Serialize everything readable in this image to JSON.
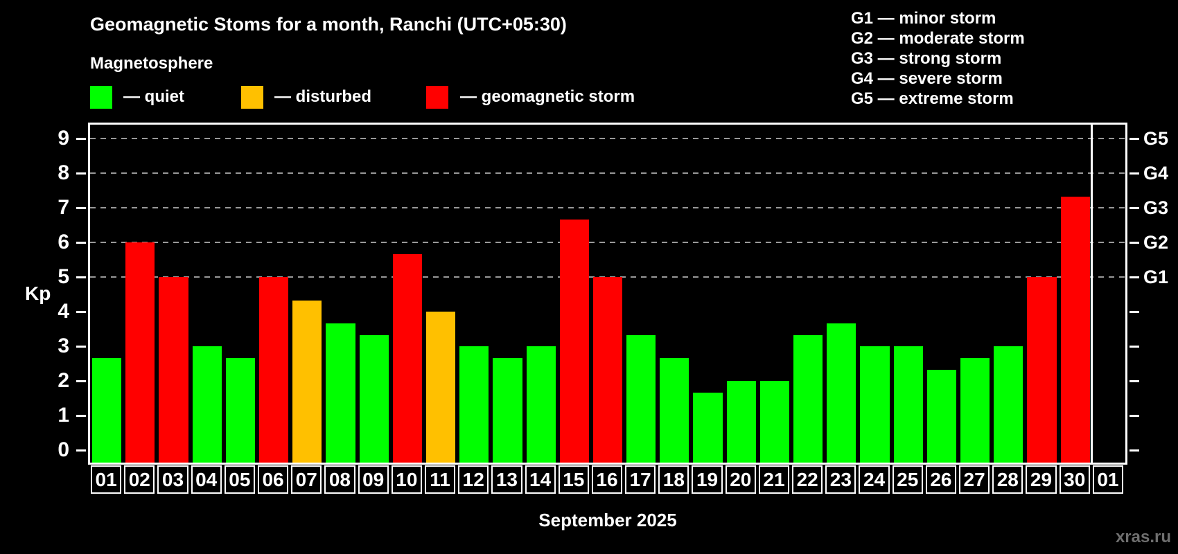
{
  "title": "Geomagnetic Stoms for a month, Ranchi (UTC+05:30)",
  "subtitle": "Magnetosphere",
  "legend": {
    "quiet_label": "— quiet",
    "disturbed_label": "— disturbed",
    "storm_label": "— geomagnetic storm"
  },
  "g_legend": [
    "G1 — minor storm",
    "G2 — moderate storm",
    "G3 — strong storm",
    "G4 — severe storm",
    "G5 — extreme storm"
  ],
  "axis": {
    "kp_label": "Kp",
    "y_ticks": [
      0,
      1,
      2,
      3,
      4,
      5,
      6,
      7,
      8,
      9
    ],
    "g_levels": [
      {
        "label": "G1",
        "value": 5
      },
      {
        "label": "G2",
        "value": 6
      },
      {
        "label": "G3",
        "value": 7
      },
      {
        "label": "G4",
        "value": 8
      },
      {
        "label": "G5",
        "value": 9
      }
    ]
  },
  "month_label": "September 2025",
  "watermark": "xras.ru",
  "colors": {
    "background": "#000000",
    "quiet": "#00ff00",
    "disturbed": "#ffc000",
    "storm": "#ff0000",
    "grid": "#999999",
    "axis": "#ffffff",
    "watermark": "#6f6f6f"
  },
  "chart_data": {
    "type": "bar",
    "title": "Geomagnetic Stoms for a month, Ranchi (UTC+05:30)",
    "xlabel": "September 2025",
    "ylabel": "Kp",
    "ylim": [
      0,
      9
    ],
    "grid": "dashed horizontal at Kp 5-9",
    "legend_position": "top",
    "gridlines_at": [
      5,
      6,
      7,
      8,
      9
    ],
    "right_axis_labels": {
      "G1": 5,
      "G2": 6,
      "G3": 7,
      "G4": 8,
      "G5": 9
    },
    "days": [
      {
        "day": "01",
        "kp": 2.67,
        "status": "quiet"
      },
      {
        "day": "02",
        "kp": 6.0,
        "status": "storm"
      },
      {
        "day": "03",
        "kp": 5.0,
        "status": "storm"
      },
      {
        "day": "04",
        "kp": 3.0,
        "status": "quiet"
      },
      {
        "day": "05",
        "kp": 2.67,
        "status": "quiet"
      },
      {
        "day": "06",
        "kp": 5.0,
        "status": "storm"
      },
      {
        "day": "07",
        "kp": 4.33,
        "status": "disturbed"
      },
      {
        "day": "08",
        "kp": 3.67,
        "status": "quiet"
      },
      {
        "day": "09",
        "kp": 3.33,
        "status": "quiet"
      },
      {
        "day": "10",
        "kp": 5.67,
        "status": "storm"
      },
      {
        "day": "11",
        "kp": 4.0,
        "status": "disturbed"
      },
      {
        "day": "12",
        "kp": 3.0,
        "status": "quiet"
      },
      {
        "day": "13",
        "kp": 2.67,
        "status": "quiet"
      },
      {
        "day": "14",
        "kp": 3.0,
        "status": "quiet"
      },
      {
        "day": "15",
        "kp": 6.67,
        "status": "storm"
      },
      {
        "day": "16",
        "kp": 5.0,
        "status": "storm"
      },
      {
        "day": "17",
        "kp": 3.33,
        "status": "quiet"
      },
      {
        "day": "18",
        "kp": 2.67,
        "status": "quiet"
      },
      {
        "day": "19",
        "kp": 1.67,
        "status": "quiet"
      },
      {
        "day": "20",
        "kp": 2.0,
        "status": "quiet"
      },
      {
        "day": "21",
        "kp": 2.0,
        "status": "quiet"
      },
      {
        "day": "22",
        "kp": 3.33,
        "status": "quiet"
      },
      {
        "day": "23",
        "kp": 3.67,
        "status": "quiet"
      },
      {
        "day": "24",
        "kp": 3.0,
        "status": "quiet"
      },
      {
        "day": "25",
        "kp": 3.0,
        "status": "quiet"
      },
      {
        "day": "26",
        "kp": 2.33,
        "status": "quiet"
      },
      {
        "day": "27",
        "kp": 2.67,
        "status": "quiet"
      },
      {
        "day": "28",
        "kp": 3.0,
        "status": "quiet"
      },
      {
        "day": "29",
        "kp": 5.0,
        "status": "storm"
      },
      {
        "day": "30",
        "kp": 7.33,
        "status": "storm"
      }
    ],
    "next_month_day": {
      "day": "01",
      "kp": null
    }
  }
}
